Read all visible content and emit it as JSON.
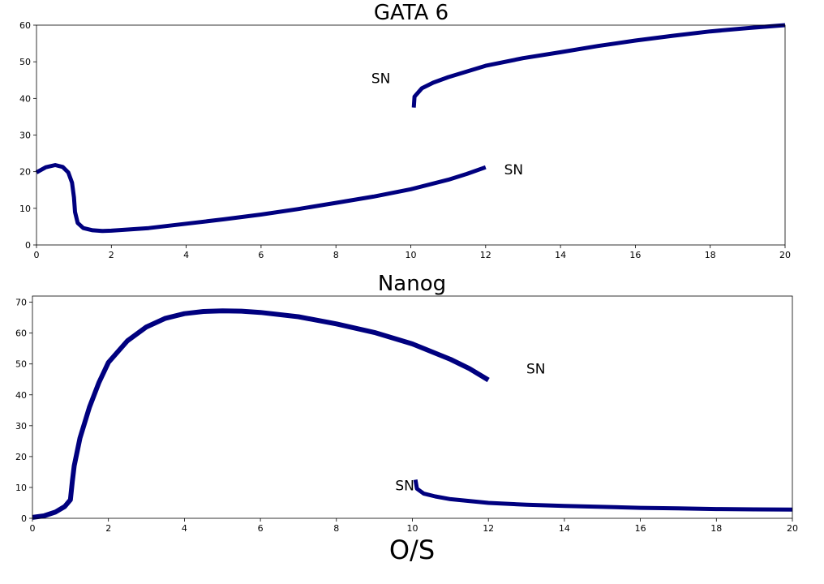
{
  "chart_data": [
    {
      "type": "line",
      "title": "GATA 6",
      "xlabel": "",
      "ylabel": "",
      "xlim": [
        0,
        20
      ],
      "ylim": [
        0,
        60
      ],
      "xticks": [
        "0",
        "2",
        "4",
        "6",
        "8",
        "10",
        "12",
        "14",
        "16",
        "18",
        "20"
      ],
      "yticks": [
        "0",
        "10",
        "20",
        "30",
        "40",
        "50",
        "60"
      ],
      "grid": false,
      "color": "#00007f",
      "series": [
        {
          "values": [
            [
              0,
              19.8
            ],
            [
              0.25,
              21.2
            ],
            [
              0.5,
              21.8
            ],
            [
              0.7,
              21.3
            ],
            [
              0.85,
              19.8
            ],
            [
              0.95,
              17
            ],
            [
              1.0,
              13
            ],
            [
              1.03,
              9
            ],
            [
              1.1,
              6
            ],
            [
              1.25,
              4.6
            ],
            [
              1.5,
              4.0
            ],
            [
              1.75,
              3.8
            ],
            [
              2,
              3.9
            ],
            [
              3,
              4.6
            ],
            [
              4,
              5.8
            ],
            [
              5,
              7.0
            ],
            [
              6,
              8.3
            ],
            [
              7,
              9.8
            ],
            [
              8,
              11.5
            ],
            [
              9,
              13.2
            ],
            [
              10,
              15.2
            ],
            [
              11,
              17.8
            ],
            [
              11.5,
              19.4
            ],
            [
              12,
              21.2
            ]
          ]
        },
        {
          "values": [
            [
              10.08,
              37.5
            ],
            [
              10.1,
              40.5
            ],
            [
              10.3,
              42.8
            ],
            [
              10.6,
              44.3
            ],
            [
              11,
              45.8
            ],
            [
              12,
              48.9
            ],
            [
              13,
              51.0
            ],
            [
              14,
              52.6
            ],
            [
              15,
              54.3
            ],
            [
              16,
              55.8
            ],
            [
              17,
              57.1
            ],
            [
              18,
              58.3
            ],
            [
              19,
              59.2
            ],
            [
              20,
              60.0
            ]
          ]
        }
      ],
      "annotations": [
        {
          "text": "SN",
          "x": 9.2,
          "y": 45.5
        },
        {
          "text": "SN",
          "x": 12.75,
          "y": 20.6
        }
      ]
    },
    {
      "type": "line",
      "title": "Nanog",
      "xlabel": "O/S",
      "ylabel": "",
      "xlim": [
        0,
        20
      ],
      "ylim": [
        0,
        72
      ],
      "xticks": [
        "0",
        "2",
        "4",
        "6",
        "8",
        "10",
        "12",
        "14",
        "16",
        "18",
        "20"
      ],
      "yticks": [
        "0",
        "10",
        "20",
        "30",
        "40",
        "50",
        "60",
        "70"
      ],
      "grid": false,
      "color": "#00007f",
      "series": [
        {
          "values": [
            [
              0,
              0.3
            ],
            [
              0.3,
              0.8
            ],
            [
              0.6,
              2
            ],
            [
              0.85,
              3.8
            ],
            [
              1.0,
              6
            ],
            [
              1.05,
              12
            ],
            [
              1.1,
              17
            ],
            [
              1.25,
              26
            ],
            [
              1.5,
              36
            ],
            [
              1.75,
              44
            ],
            [
              2,
              50.5
            ],
            [
              2.5,
              57.5
            ],
            [
              3,
              62
            ],
            [
              3.5,
              64.8
            ],
            [
              4,
              66.3
            ],
            [
              4.5,
              67
            ],
            [
              5,
              67.2
            ],
            [
              5.5,
              67.1
            ],
            [
              6,
              66.7
            ],
            [
              7,
              65.3
            ],
            [
              8,
              63
            ],
            [
              9,
              60.2
            ],
            [
              10,
              56.5
            ],
            [
              11,
              51.5
            ],
            [
              11.5,
              48.5
            ],
            [
              12,
              44.8
            ]
          ]
        },
        {
          "values": [
            [
              10.08,
              12.5
            ],
            [
              10.12,
              9.6
            ],
            [
              10.3,
              8
            ],
            [
              10.6,
              7.1
            ],
            [
              11,
              6.2
            ],
            [
              12,
              5.0
            ],
            [
              13,
              4.4
            ],
            [
              14,
              4.0
            ],
            [
              15,
              3.7
            ],
            [
              16,
              3.4
            ],
            [
              17,
              3.2
            ],
            [
              18,
              3.0
            ],
            [
              19,
              2.9
            ],
            [
              20,
              2.8
            ]
          ]
        }
      ],
      "annotations": [
        {
          "text": "SN",
          "x": 13.25,
          "y": 48.5
        },
        {
          "text": "SN",
          "x": 9.8,
          "y": 10.7
        }
      ]
    }
  ]
}
